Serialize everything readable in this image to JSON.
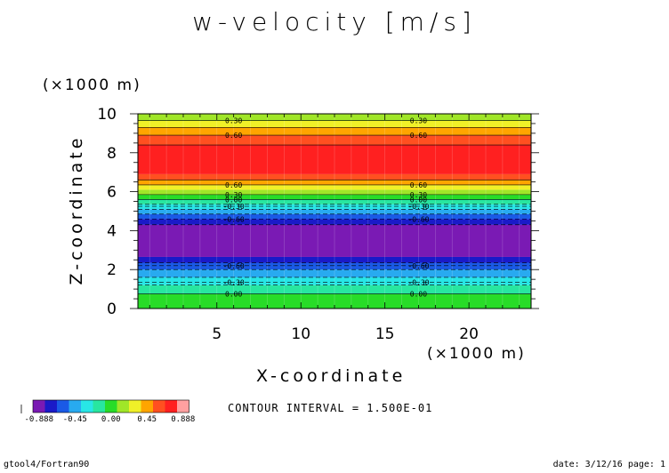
{
  "chart_data": {
    "type": "heatmap",
    "title": "w-velocity [m/s]",
    "xlabel": "X-coordinate",
    "ylabel": "Z-coordinate",
    "x_unit": "(×1000 m)",
    "y_unit": "(×1000 m)",
    "xlim": [
      0.3,
      23.7
    ],
    "ylim": [
      0,
      10
    ],
    "x_ticks": [
      5,
      10,
      15,
      20
    ],
    "y_ticks": [
      0,
      2,
      4,
      6,
      8,
      10
    ],
    "contour_interval_text": "CONTOUR INTERVAL = 1.500E-01",
    "colorbar_levels": [
      -0.888,
      -0.75,
      -0.6,
      -0.45,
      -0.3,
      -0.15,
      0.0,
      0.15,
      0.3,
      0.45,
      0.6,
      0.75,
      0.888
    ],
    "colorbar_labels": [
      "-0.888",
      "-0.45",
      "0.00",
      "0.45",
      "0.888"
    ],
    "colorbar_colors": [
      "#7a1ab4",
      "#1a1ac8",
      "#1a5ae6",
      "#28aaf0",
      "#28e6e6",
      "#28e6a0",
      "#28dc28",
      "#a0e628",
      "#f0f028",
      "#ffa500",
      "#ff5020",
      "#ff2020",
      "#ffa0a0"
    ],
    "bands": [
      {
        "z0": 0.0,
        "z1": 0.75,
        "value": 0.07
      },
      {
        "z0": 0.75,
        "z1": 1.2,
        "value": -0.08
      },
      {
        "z0": 1.2,
        "z1": 1.6,
        "value": -0.22
      },
      {
        "z0": 1.6,
        "z1": 2.0,
        "value": -0.37
      },
      {
        "z0": 2.0,
        "z1": 2.35,
        "value": -0.52
      },
      {
        "z0": 2.35,
        "z1": 2.65,
        "value": -0.67
      },
      {
        "z0": 2.65,
        "z1": 4.3,
        "value": -0.82
      },
      {
        "z0": 4.3,
        "z1": 4.6,
        "value": -0.67
      },
      {
        "z0": 4.6,
        "z1": 4.85,
        "value": -0.52
      },
      {
        "z0": 4.85,
        "z1": 5.1,
        "value": -0.37
      },
      {
        "z0": 5.1,
        "z1": 5.35,
        "value": -0.22
      },
      {
        "z0": 5.35,
        "z1": 5.6,
        "value": -0.08
      },
      {
        "z0": 5.6,
        "z1": 5.85,
        "value": 0.07
      },
      {
        "z0": 5.85,
        "z1": 6.1,
        "value": 0.22
      },
      {
        "z0": 6.1,
        "z1": 6.35,
        "value": 0.37
      },
      {
        "z0": 6.35,
        "z1": 6.6,
        "value": 0.52
      },
      {
        "z0": 6.6,
        "z1": 6.9,
        "value": 0.67
      },
      {
        "z0": 6.9,
        "z1": 8.4,
        "value": 0.82
      },
      {
        "z0": 8.4,
        "z1": 8.9,
        "value": 0.67
      },
      {
        "z0": 8.9,
        "z1": 9.3,
        "value": 0.52
      },
      {
        "z0": 9.3,
        "z1": 9.65,
        "value": 0.37
      },
      {
        "z0": 9.65,
        "z1": 10.0,
        "value": 0.22
      }
    ],
    "contour_lines": [
      {
        "z": 0.75,
        "label": "0.00",
        "dashed": false
      },
      {
        "z": 1.2,
        "label": "",
        "dashed": true
      },
      {
        "z": 1.35,
        "label": "-0.30",
        "dashed": true
      },
      {
        "z": 1.6,
        "label": "",
        "dashed": true
      },
      {
        "z": 2.0,
        "label": "",
        "dashed": true
      },
      {
        "z": 2.2,
        "label": "-0.60",
        "dashed": true
      },
      {
        "z": 2.35,
        "label": "",
        "dashed": true
      },
      {
        "z": 4.3,
        "label": "",
        "dashed": true
      },
      {
        "z": 4.6,
        "label": "-0.60",
        "dashed": true
      },
      {
        "z": 4.85,
        "label": "",
        "dashed": true
      },
      {
        "z": 5.1,
        "label": "",
        "dashed": true
      },
      {
        "z": 5.25,
        "label": "-0.30",
        "dashed": true
      },
      {
        "z": 5.35,
        "label": "",
        "dashed": true
      },
      {
        "z": 5.6,
        "label": "0.00",
        "dashed": false
      },
      {
        "z": 5.85,
        "label": "0.30",
        "dashed": false
      },
      {
        "z": 6.35,
        "label": "0.60",
        "dashed": false
      },
      {
        "z": 6.6,
        "label": "",
        "dashed": false
      },
      {
        "z": 8.4,
        "label": "",
        "dashed": false
      },
      {
        "z": 8.9,
        "label": "0.60",
        "dashed": false
      },
      {
        "z": 9.3,
        "label": "",
        "dashed": false
      },
      {
        "z": 9.65,
        "label": "0.30",
        "dashed": false
      }
    ],
    "label_x_positions": [
      6.0,
      17.0
    ]
  },
  "footer": {
    "left": "gtool4/Fortran90",
    "right": "date: 3/12/16 page: 1"
  }
}
